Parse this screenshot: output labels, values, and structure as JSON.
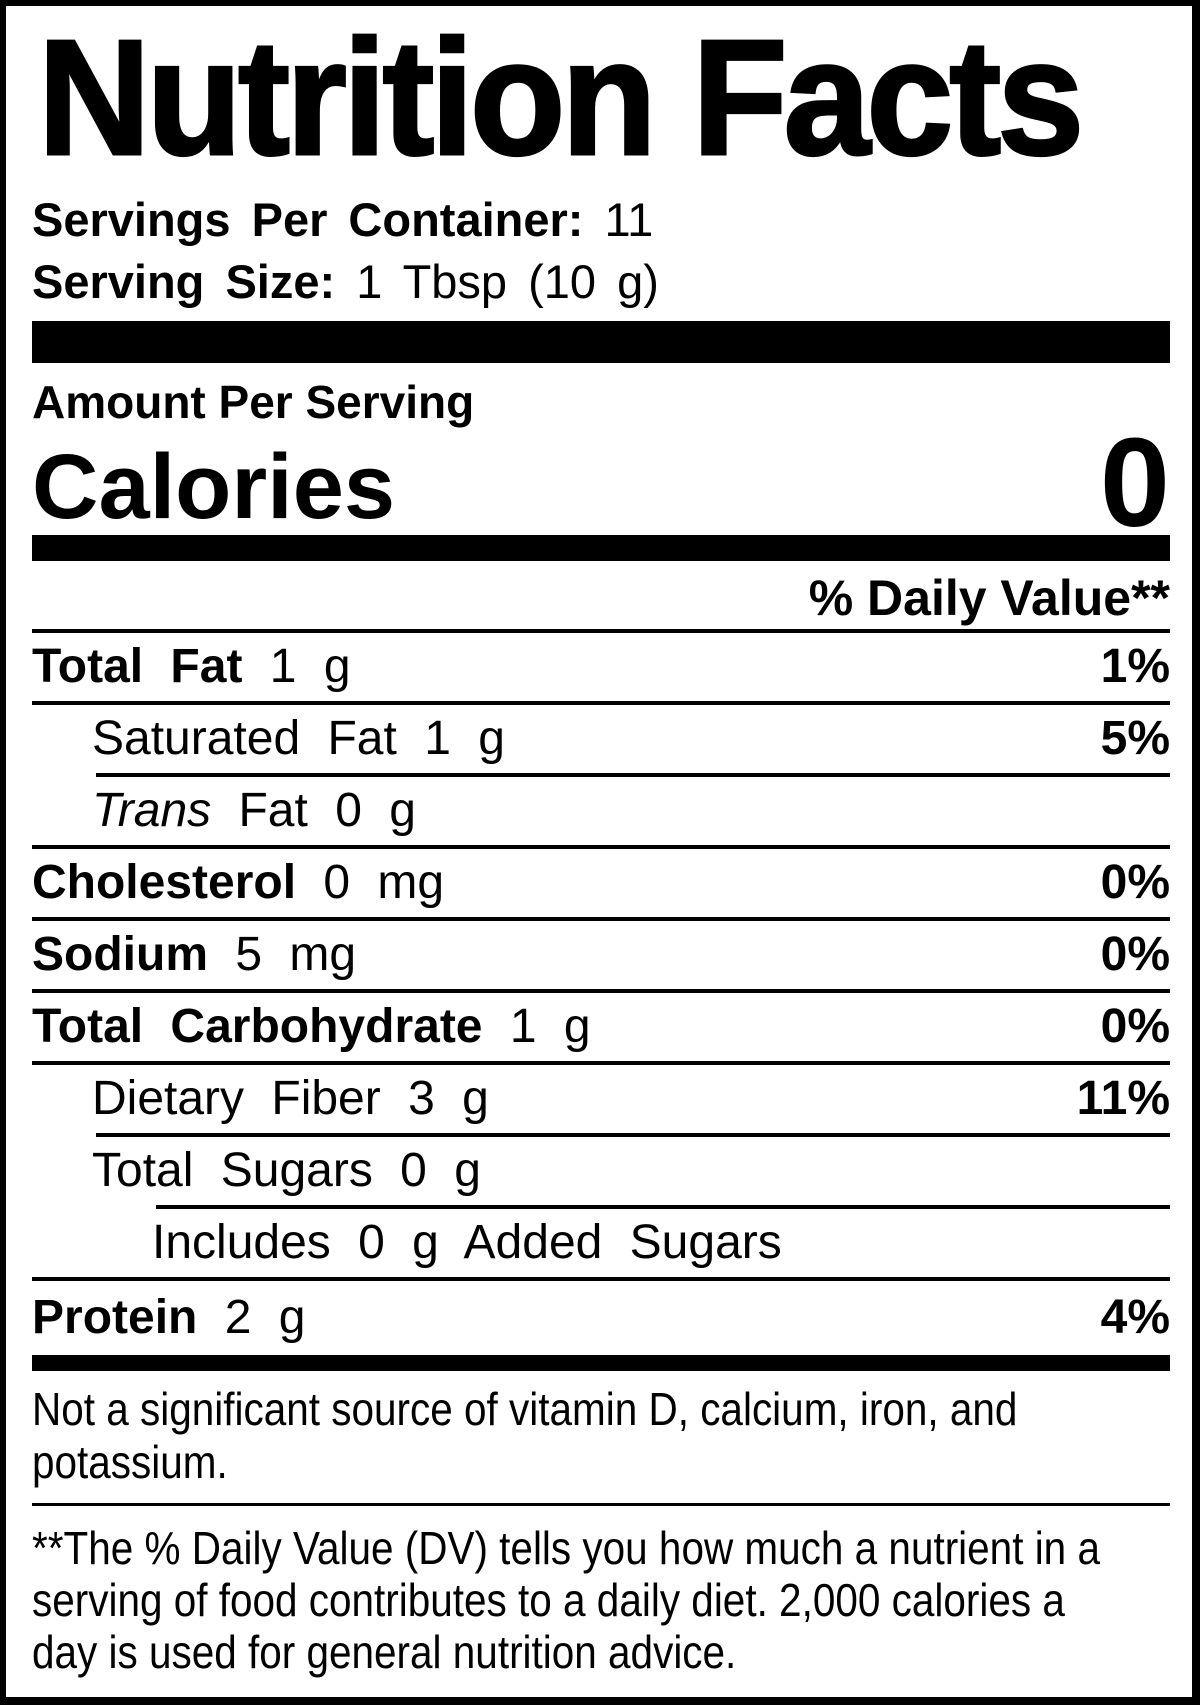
{
  "title": "Nutrition Facts",
  "servings_per_container": {
    "label": "Servings Per Container:",
    "value": "11"
  },
  "serving_size": {
    "label": "Serving Size:",
    "value": "1 Tbsp (10 g)"
  },
  "amount_per_serving": "Amount Per Serving",
  "calories": {
    "label": "Calories",
    "value": "0"
  },
  "daily_value_header": "% Daily Value**",
  "nutrients": [
    {
      "name": "Total Fat",
      "amount": "1 g",
      "dv": "1%",
      "level": 0,
      "bold": true,
      "rule_after": "full"
    },
    {
      "name": "Saturated Fat",
      "amount": "1 g",
      "dv": "5%",
      "level": 1,
      "bold": false,
      "rule_after": "l1"
    },
    {
      "name_italic": "Trans",
      "name": "Fat",
      "amount": "0 g",
      "dv": "",
      "level": 1,
      "bold": false,
      "rule_after": "full"
    },
    {
      "name": "Cholesterol",
      "amount": "0 mg",
      "dv": "0%",
      "level": 0,
      "bold": true,
      "rule_after": "full"
    },
    {
      "name": "Sodium",
      "amount": "5 mg",
      "dv": "0%",
      "level": 0,
      "bold": true,
      "rule_after": "full"
    },
    {
      "name": "Total Carbohydrate",
      "amount": "1 g",
      "dv": "0%",
      "level": 0,
      "bold": true,
      "rule_after": "full"
    },
    {
      "name": "Dietary Fiber",
      "amount": "3 g",
      "dv": "11%",
      "level": 1,
      "bold": false,
      "rule_after": "l1"
    },
    {
      "name": "Total Sugars",
      "amount": "0 g",
      "dv": "",
      "level": 1,
      "bold": false,
      "rule_after": "l2"
    },
    {
      "name": "Includes 0 g Added Sugars",
      "amount": "",
      "dv": "",
      "level": 2,
      "bold": false,
      "rule_after": "full"
    },
    {
      "name": "Protein",
      "amount": "2 g",
      "dv": "4%",
      "level": 0,
      "bold": true,
      "rule_after": "none"
    }
  ],
  "not_significant_lines": [
    "Not a significant source of vitamin D, calcium, iron, and",
    "potassium."
  ],
  "footnote_lines": [
    "**The % Daily Value (DV) tells you how much a nutrient in a",
    "serving of food contributes to a daily diet. 2,000 calories a",
    "day is used for general nutrition advice."
  ],
  "colors": {
    "ink": "#000000",
    "paper": "#ffffff"
  }
}
